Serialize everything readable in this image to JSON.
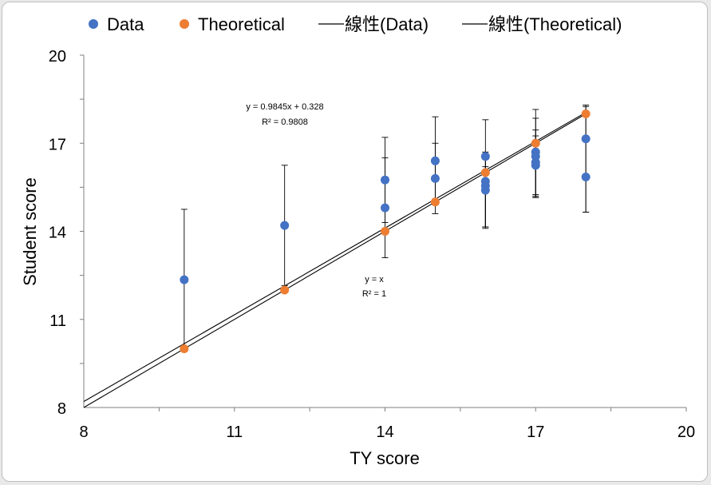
{
  "chart_data": {
    "type": "scatter",
    "xlabel": "TY score",
    "ylabel": "Student score",
    "xlim": [
      8,
      20
    ],
    "ylim": [
      8,
      20
    ],
    "x_ticks": [
      8,
      11,
      14,
      17,
      20
    ],
    "y_ticks": [
      8,
      11,
      14,
      17,
      20
    ],
    "grid": false,
    "legend_position": "top",
    "legend": [
      "Data",
      "Theoretical",
      "線性(Data)",
      "線性(Theoretical)"
    ],
    "colors": {
      "data": "#4472c4",
      "theoretical": "#ed7d31",
      "trendline": "#000000"
    },
    "series": [
      {
        "name": "Data",
        "points": [
          {
            "x": 10,
            "y": 12.35,
            "err_plus": 2.4,
            "err_minus": 2.4
          },
          {
            "x": 12,
            "y": 14.2,
            "err_plus": 2.05,
            "err_minus": 2.05
          },
          {
            "x": 14,
            "y": 15.75,
            "err_plus": 1.45,
            "err_minus": 1.45
          },
          {
            "x": 14,
            "y": 14.8,
            "err_plus": 1.7,
            "err_minus": 1.7
          },
          {
            "x": 15,
            "y": 16.4,
            "err_plus": 1.5,
            "err_minus": 1.5
          },
          {
            "x": 15,
            "y": 15.8,
            "err_plus": 1.2,
            "err_minus": 1.2
          },
          {
            "x": 16,
            "y": 16.55,
            "err_plus": 1.25,
            "err_minus": 2.4
          },
          {
            "x": 16,
            "y": 15.7,
            "err_plus": 1.0,
            "err_minus": 1.55
          },
          {
            "x": 16,
            "y": 15.55,
            "err_plus": 0.9,
            "err_minus": 1.4
          },
          {
            "x": 16,
            "y": 15.4,
            "err_plus": 0.8,
            "err_minus": 1.3
          },
          {
            "x": 17,
            "y": 16.7,
            "err_plus": 1.45,
            "err_minus": 1.45
          },
          {
            "x": 17,
            "y": 16.55,
            "err_plus": 1.3,
            "err_minus": 1.35
          },
          {
            "x": 17,
            "y": 16.35,
            "err_plus": 1.1,
            "err_minus": 1.2
          },
          {
            "x": 17,
            "y": 16.25,
            "err_plus": 1.0,
            "err_minus": 1.1
          },
          {
            "x": 18,
            "y": 17.15,
            "err_plus": 1.15,
            "err_minus": 2.5
          },
          {
            "x": 18,
            "y": 15.85,
            "err_plus": 2.4,
            "err_minus": 1.2
          }
        ]
      },
      {
        "name": "Theoretical",
        "points": [
          {
            "x": 10,
            "y": 10
          },
          {
            "x": 12,
            "y": 12
          },
          {
            "x": 14,
            "y": 14
          },
          {
            "x": 15,
            "y": 15
          },
          {
            "x": 16,
            "y": 16
          },
          {
            "x": 17,
            "y": 17
          },
          {
            "x": 18,
            "y": 18
          }
        ]
      }
    ],
    "trendlines": [
      {
        "name": "線性(Data)",
        "slope": 0.9845,
        "intercept": 0.328,
        "x_range": [
          8,
          18
        ],
        "equation": "y = 0.9845x + 0.328",
        "r2": "R² = 0.9808"
      },
      {
        "name": "線性(Theoretical)",
        "slope": 1,
        "intercept": 0,
        "x_range": [
          8,
          18
        ],
        "equation": "y = x",
        "r2": "R² = 1"
      }
    ]
  }
}
